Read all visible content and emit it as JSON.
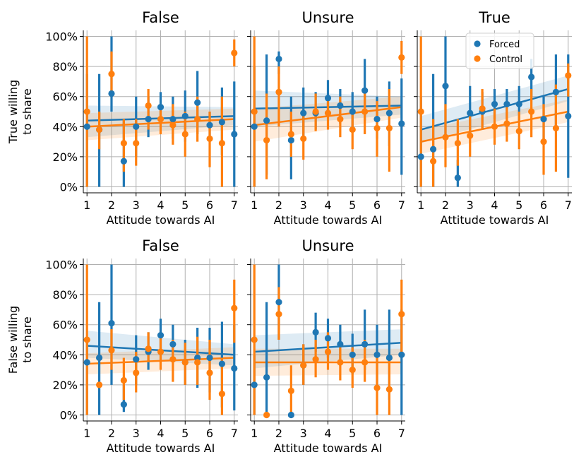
{
  "figure": {
    "row_ylabels": [
      "True willing\nto share",
      "False willing\nto share"
    ],
    "xlabel": "Attitude towards AI",
    "legend": [
      {
        "name": "Forced",
        "color": "#1f77b4"
      },
      {
        "name": "Control",
        "color": "#ff7f0e"
      }
    ]
  },
  "chart_data": [
    {
      "type": "scatter",
      "title": "False",
      "ylabel": "True willing\nto share",
      "xlabel": "Attitude towards AI",
      "xlim": [
        0.85,
        7.15
      ],
      "ylim": [
        -0.04,
        1.04
      ],
      "xticks": [
        1,
        2,
        3,
        4,
        5,
        6,
        7
      ],
      "yticks": [
        0,
        0.2,
        0.4,
        0.6,
        0.8,
        1.0
      ],
      "ytick_labels": [
        "0%",
        "20%",
        "40%",
        "60%",
        "80%",
        "100%"
      ],
      "grid": true,
      "series": [
        {
          "name": "Forced",
          "color": "#1f77b4",
          "x": [
            1,
            1.5,
            2,
            2.5,
            3,
            3.5,
            4,
            4.5,
            5,
            5.5,
            6,
            6.5,
            7
          ],
          "y": [
            0.4,
            0.38,
            0.62,
            0.17,
            0.4,
            0.45,
            0.53,
            0.45,
            0.47,
            0.56,
            0.41,
            0.43,
            0.35
          ],
          "err_low": [
            0.0,
            0.0,
            0.5,
            0.0,
            0.2,
            0.33,
            0.43,
            0.32,
            0.3,
            0.35,
            0.33,
            0.21,
            0.0
          ],
          "err_high": [
            0.75,
            0.75,
            1.0,
            0.45,
            0.6,
            0.6,
            0.63,
            0.6,
            0.64,
            0.77,
            0.5,
            0.66,
            0.7
          ],
          "fit": [
            0.44,
            0.47
          ],
          "band_low": [
            0.33,
            0.41
          ],
          "band_high": [
            0.54,
            0.53
          ]
        },
        {
          "name": "Control",
          "color": "#ff7f0e",
          "x": [
            1,
            1.5,
            2,
            2.5,
            3,
            3.5,
            4,
            4.5,
            5,
            5.5,
            6,
            6.5,
            7
          ],
          "y": [
            0.5,
            0.38,
            0.75,
            0.29,
            0.29,
            0.54,
            0.45,
            0.41,
            0.35,
            0.45,
            0.32,
            0.29,
            0.89
          ],
          "err_low": [
            0.0,
            0.25,
            0.6,
            0.1,
            0.14,
            0.38,
            0.35,
            0.28,
            0.2,
            0.3,
            0.13,
            0.0,
            0.8
          ],
          "err_high": [
            1.0,
            0.5,
            0.9,
            0.45,
            0.45,
            0.65,
            0.55,
            0.55,
            0.5,
            0.6,
            0.5,
            0.6,
            0.98
          ],
          "fit": [
            0.4,
            0.45
          ],
          "band_low": [
            0.31,
            0.38
          ],
          "band_high": [
            0.49,
            0.52
          ]
        }
      ]
    },
    {
      "type": "scatter",
      "title": "Unsure",
      "xlabel": "Attitude towards AI",
      "xlim": [
        0.85,
        7.15
      ],
      "ylim": [
        -0.04,
        1.04
      ],
      "xticks": [
        1,
        2,
        3,
        4,
        5,
        6,
        7
      ],
      "yticks": [
        0,
        0.2,
        0.4,
        0.6,
        0.8,
        1.0
      ],
      "grid": true,
      "series": [
        {
          "name": "Forced",
          "color": "#1f77b4",
          "x": [
            1,
            1.5,
            2,
            2.5,
            3,
            3.5,
            4,
            4.5,
            5,
            5.5,
            6,
            6.5,
            7
          ],
          "y": [
            0.4,
            0.44,
            0.85,
            0.31,
            0.49,
            0.49,
            0.59,
            0.54,
            0.5,
            0.64,
            0.45,
            0.49,
            0.42
          ],
          "err_low": [
            0.0,
            0.08,
            0.75,
            0.05,
            0.33,
            0.38,
            0.48,
            0.42,
            0.38,
            0.44,
            0.32,
            0.27,
            0.08
          ],
          "err_high": [
            0.8,
            0.88,
            0.9,
            0.6,
            0.66,
            0.63,
            0.71,
            0.65,
            0.63,
            0.85,
            0.6,
            0.7,
            0.72
          ],
          "fit": [
            0.52,
            0.54
          ],
          "band_low": [
            0.4,
            0.48
          ],
          "band_high": [
            0.64,
            0.6
          ]
        },
        {
          "name": "Control",
          "color": "#ff7f0e",
          "x": [
            1,
            1.5,
            2,
            2.5,
            3,
            3.5,
            4,
            4.5,
            5,
            5.5,
            6,
            6.5,
            7
          ],
          "y": [
            0.5,
            0.31,
            0.63,
            0.35,
            0.32,
            0.5,
            0.49,
            0.45,
            0.38,
            0.5,
            0.39,
            0.39,
            0.86
          ],
          "err_low": [
            0.0,
            0.05,
            0.4,
            0.2,
            0.18,
            0.37,
            0.38,
            0.33,
            0.25,
            0.35,
            0.2,
            0.1,
            0.75
          ],
          "err_high": [
            1.0,
            0.62,
            0.8,
            0.5,
            0.47,
            0.62,
            0.6,
            0.6,
            0.52,
            0.65,
            0.57,
            0.65,
            0.97
          ],
          "fit": [
            0.41,
            0.53
          ],
          "band_low": [
            0.3,
            0.46
          ],
          "band_high": [
            0.52,
            0.6
          ]
        }
      ]
    },
    {
      "type": "scatter",
      "title": "True",
      "xlabel": "Attitude towards AI",
      "xlim": [
        0.85,
        7.15
      ],
      "ylim": [
        -0.04,
        1.04
      ],
      "xticks": [
        1,
        2,
        3,
        4,
        5,
        6,
        7
      ],
      "yticks": [
        0,
        0.2,
        0.4,
        0.6,
        0.8,
        1.0
      ],
      "grid": true,
      "legend_position": "top-right",
      "series": [
        {
          "name": "Forced",
          "color": "#1f77b4",
          "x": [
            1,
            1.5,
            2,
            2.5,
            3,
            3.5,
            4,
            4.5,
            5,
            5.5,
            6,
            6.5,
            7
          ],
          "y": [
            0.2,
            0.25,
            0.67,
            0.06,
            0.49,
            0.5,
            0.55,
            0.55,
            0.55,
            0.73,
            0.45,
            0.63,
            0.47
          ],
          "err_low": [
            0.0,
            0.0,
            0.33,
            0.0,
            0.33,
            0.38,
            0.45,
            0.45,
            0.43,
            0.6,
            0.3,
            0.38,
            0.06
          ],
          "err_high": [
            0.6,
            0.75,
            1.0,
            0.18,
            0.67,
            0.63,
            0.65,
            0.65,
            0.67,
            0.85,
            0.6,
            0.88,
            0.88
          ],
          "fit": [
            0.38,
            0.65
          ],
          "band_low": [
            0.29,
            0.57
          ],
          "band_high": [
            0.47,
            0.74
          ]
        },
        {
          "name": "Control",
          "color": "#ff7f0e",
          "x": [
            1,
            1.5,
            2,
            2.5,
            3,
            3.5,
            4,
            4.5,
            5,
            5.5,
            6,
            6.5,
            7
          ],
          "y": [
            0.5,
            0.17,
            0.33,
            0.29,
            0.34,
            0.52,
            0.4,
            0.42,
            0.37,
            0.5,
            0.3,
            0.39,
            0.74
          ],
          "err_low": [
            0.0,
            0.0,
            0.13,
            0.14,
            0.2,
            0.38,
            0.28,
            0.3,
            0.25,
            0.33,
            0.08,
            0.1,
            0.6
          ],
          "err_high": [
            1.0,
            0.45,
            0.55,
            0.45,
            0.48,
            0.65,
            0.52,
            0.55,
            0.5,
            0.65,
            0.55,
            0.68,
            0.82
          ],
          "fit": [
            0.3,
            0.5
          ],
          "band_low": [
            0.22,
            0.43
          ],
          "band_high": [
            0.38,
            0.58
          ]
        }
      ]
    },
    {
      "type": "scatter",
      "title": "False",
      "ylabel": "False willing\nto share",
      "xlabel": "Attitude towards AI",
      "xlim": [
        0.85,
        7.15
      ],
      "ylim": [
        -0.04,
        1.04
      ],
      "xticks": [
        1,
        2,
        3,
        4,
        5,
        6,
        7
      ],
      "yticks": [
        0,
        0.2,
        0.4,
        0.6,
        0.8,
        1.0
      ],
      "ytick_labels": [
        "0%",
        "20%",
        "40%",
        "60%",
        "80%",
        "100%"
      ],
      "grid": true,
      "series": [
        {
          "name": "Forced",
          "color": "#1f77b4",
          "x": [
            1,
            1.5,
            2,
            2.5,
            3,
            3.5,
            4,
            4.5,
            5,
            5.5,
            6,
            6.5,
            7
          ],
          "y": [
            0.35,
            0.38,
            0.61,
            0.07,
            0.37,
            0.42,
            0.53,
            0.47,
            0.35,
            0.38,
            0.38,
            0.34,
            0.31
          ],
          "err_low": [
            0.0,
            0.0,
            0.2,
            0.02,
            0.2,
            0.3,
            0.4,
            0.35,
            0.2,
            0.18,
            0.15,
            0.05,
            0.03
          ],
          "err_high": [
            0.5,
            0.75,
            1.0,
            0.2,
            0.53,
            0.55,
            0.64,
            0.6,
            0.5,
            0.58,
            0.58,
            0.62,
            0.6
          ],
          "fit": [
            0.46,
            0.4
          ],
          "band_low": [
            0.38,
            0.33
          ],
          "band_high": [
            0.56,
            0.47
          ]
        },
        {
          "name": "Control",
          "color": "#ff7f0e",
          "x": [
            1,
            1.5,
            2,
            2.5,
            3,
            3.5,
            4,
            4.5,
            5,
            5.5,
            6,
            6.5,
            7
          ],
          "y": [
            0.5,
            0.2,
            0.43,
            0.23,
            0.28,
            0.44,
            0.42,
            0.37,
            0.35,
            0.35,
            0.28,
            0.14,
            0.71
          ],
          "err_low": [
            0.0,
            0.18,
            0.3,
            0.1,
            0.15,
            0.35,
            0.3,
            0.22,
            0.2,
            0.2,
            0.1,
            0.0,
            0.48
          ],
          "err_high": [
            1.0,
            0.22,
            0.57,
            0.38,
            0.42,
            0.55,
            0.52,
            0.5,
            0.48,
            0.52,
            0.5,
            0.38,
            0.9
          ],
          "fit": [
            0.34,
            0.38
          ],
          "band_low": [
            0.27,
            0.31
          ],
          "band_high": [
            0.41,
            0.45
          ]
        }
      ]
    },
    {
      "type": "scatter",
      "title": "Unsure",
      "xlabel": "Attitude towards AI",
      "xlim": [
        0.85,
        7.15
      ],
      "ylim": [
        -0.04,
        1.04
      ],
      "xticks": [
        1,
        2,
        3,
        4,
        5,
        6,
        7
      ],
      "yticks": [
        0,
        0.2,
        0.4,
        0.6,
        0.8,
        1.0
      ],
      "grid": true,
      "series": [
        {
          "name": "Forced",
          "color": "#1f77b4",
          "x": [
            1,
            1.5,
            2,
            2.5,
            3,
            3.5,
            4,
            4.5,
            5,
            5.5,
            6,
            6.5,
            7
          ],
          "y": [
            0.2,
            0.25,
            0.75,
            0.0,
            0.33,
            0.55,
            0.51,
            0.47,
            0.4,
            0.47,
            0.4,
            0.38,
            0.4
          ],
          "err_low": [
            0.0,
            0.0,
            0.5,
            0.0,
            0.2,
            0.42,
            0.38,
            0.35,
            0.27,
            0.3,
            0.2,
            0.1,
            0.0
          ],
          "err_high": [
            0.4,
            0.75,
            1.0,
            0.0,
            0.47,
            0.68,
            0.64,
            0.6,
            0.54,
            0.7,
            0.6,
            0.7,
            0.7
          ],
          "fit": [
            0.42,
            0.48
          ],
          "band_low": [
            0.31,
            0.4
          ],
          "band_high": [
            0.53,
            0.57
          ]
        },
        {
          "name": "Control",
          "color": "#ff7f0e",
          "x": [
            1,
            1.5,
            2,
            2.5,
            3,
            3.5,
            4,
            4.5,
            5,
            5.5,
            6,
            6.5,
            7
          ],
          "y": [
            0.5,
            0.0,
            0.67,
            0.16,
            0.33,
            0.37,
            0.42,
            0.35,
            0.3,
            0.35,
            0.18,
            0.17,
            0.67
          ],
          "err_low": [
            0.0,
            0.0,
            0.5,
            0.0,
            0.2,
            0.25,
            0.3,
            0.23,
            0.18,
            0.22,
            0.0,
            0.0,
            0.4
          ],
          "err_high": [
            1.0,
            0.0,
            0.85,
            0.33,
            0.47,
            0.5,
            0.55,
            0.48,
            0.45,
            0.5,
            0.4,
            0.4,
            0.9
          ],
          "fit": [
            0.35,
            0.35
          ],
          "band_low": [
            0.26,
            0.27
          ],
          "band_high": [
            0.44,
            0.44
          ]
        }
      ]
    }
  ]
}
